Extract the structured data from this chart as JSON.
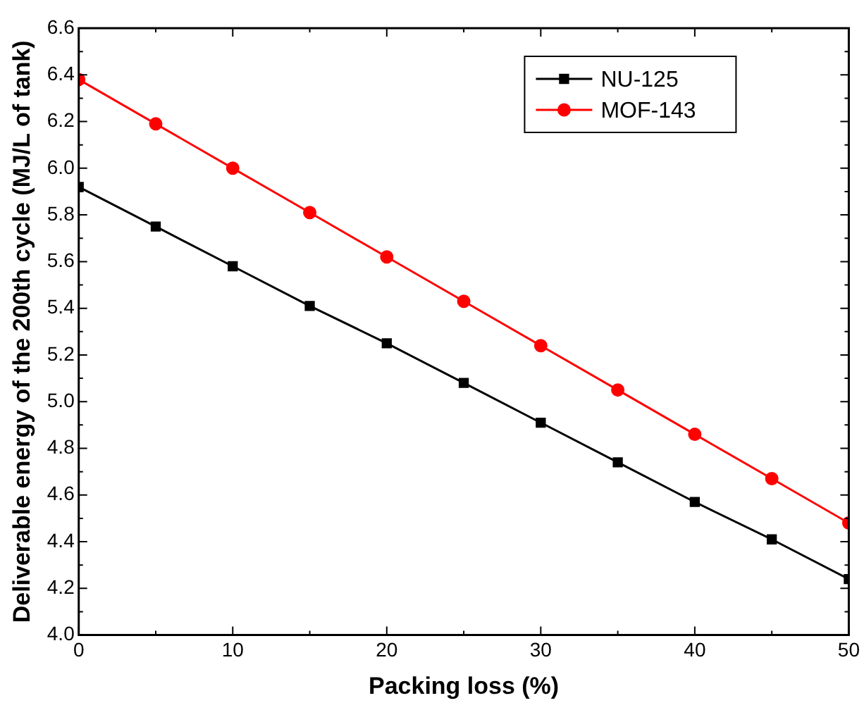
{
  "chart_data": {
    "type": "line",
    "xlabel": "Packing loss (%)",
    "ylabel": "Deliverable energy of the 200th cycle (MJ/L of tank)",
    "x": [
      0,
      5,
      10,
      15,
      20,
      25,
      30,
      35,
      40,
      45,
      50
    ],
    "series": [
      {
        "name": "NU-125",
        "color": "#000000",
        "marker": "square",
        "values": [
          5.92,
          5.75,
          5.58,
          5.41,
          5.25,
          5.08,
          4.91,
          4.74,
          4.57,
          4.41,
          4.24
        ]
      },
      {
        "name": "MOF-143",
        "color": "#ff0000",
        "marker": "circle",
        "values": [
          6.38,
          6.19,
          6.0,
          5.81,
          5.62,
          5.43,
          5.24,
          5.05,
          4.86,
          4.67,
          4.48
        ]
      }
    ],
    "xlim": [
      0,
      50
    ],
    "xticks": [
      0,
      10,
      20,
      30,
      40,
      50
    ],
    "ylim": [
      4.0,
      6.6
    ],
    "yticks": [
      {
        "value": 4.0,
        "label": "4.0"
      },
      {
        "value": 4.2,
        "label": "4.2"
      },
      {
        "value": 4.4,
        "label": "4.4"
      },
      {
        "value": 4.6,
        "label": "4.6"
      },
      {
        "value": 4.8,
        "label": "4.8"
      },
      {
        "value": 5.0,
        "label": "5.0"
      },
      {
        "value": 5.2,
        "label": "5.2"
      },
      {
        "value": 5.4,
        "label": "5.4"
      },
      {
        "value": 5.6,
        "label": "5.6"
      },
      {
        "value": 5.8,
        "label": "5.8"
      },
      {
        "value": 6.0,
        "label": "6.0"
      },
      {
        "value": 6.2,
        "label": "6.2"
      },
      {
        "value": 6.4,
        "label": "6.4"
      },
      {
        "value": 6.6,
        "label": "6.6"
      }
    ],
    "grid": false,
    "legend": "top right",
    "line_style": "solid"
  }
}
